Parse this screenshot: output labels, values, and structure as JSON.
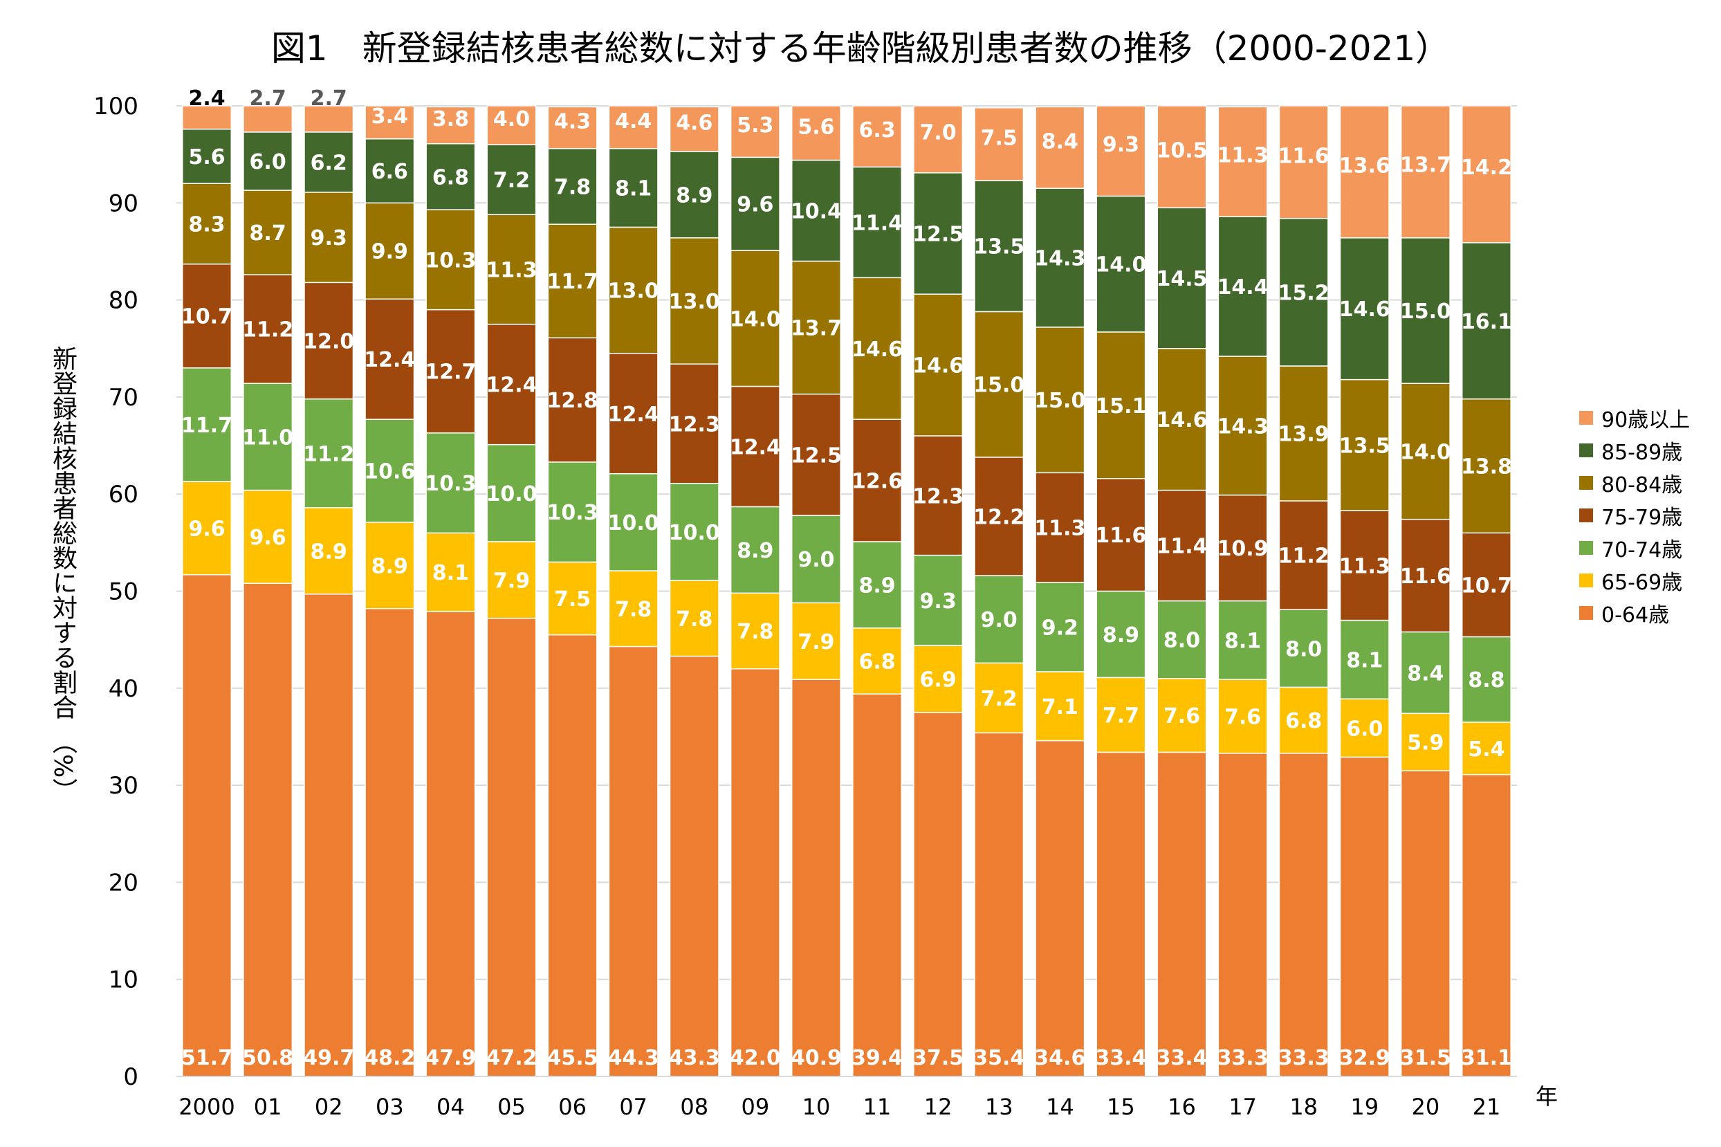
{
  "chart_data": {
    "type": "bar",
    "stacked": true,
    "title": "図1　新登録結核患者総数に対する年齢階級別患者数の推移（2000-2021）",
    "ylabel": "新登録結核患者総数に対する割合",
    "ylabel_unit": "（%）",
    "xunit": "年",
    "ylim": [
      0,
      100
    ],
    "yticks": [
      "0",
      "10",
      "20",
      "30",
      "40",
      "50",
      "60",
      "70",
      "80",
      "90",
      "100"
    ],
    "categories": [
      "2000",
      "01",
      "02",
      "03",
      "04",
      "05",
      "06",
      "07",
      "08",
      "09",
      "10",
      "11",
      "12",
      "13",
      "14",
      "15",
      "16",
      "17",
      "18",
      "19",
      "20",
      "21"
    ],
    "grid": true,
    "legend_position": "right",
    "series": [
      {
        "name": "0-64歳",
        "color": "#ED7D31",
        "values": [
          51.7,
          50.8,
          49.7,
          48.2,
          47.9,
          47.2,
          45.5,
          44.3,
          43.3,
          42.0,
          40.9,
          39.4,
          37.5,
          35.4,
          34.6,
          33.4,
          33.4,
          33.3,
          33.3,
          32.9,
          31.5,
          31.1
        ]
      },
      {
        "name": "65-69歳",
        "color": "#FFC000",
        "values": [
          9.6,
          9.6,
          8.9,
          8.9,
          8.1,
          7.9,
          7.5,
          7.8,
          7.8,
          7.8,
          7.9,
          6.8,
          6.9,
          7.2,
          7.1,
          7.7,
          7.6,
          7.6,
          6.8,
          6.0,
          5.9,
          5.4
        ]
      },
      {
        "name": "70-74歳",
        "color": "#70AD47",
        "values": [
          11.7,
          11.0,
          11.2,
          10.6,
          10.3,
          10.0,
          10.3,
          10.0,
          10.0,
          8.9,
          9.0,
          8.9,
          9.3,
          9.0,
          9.2,
          8.9,
          8.0,
          8.1,
          8.0,
          8.1,
          8.4,
          8.8
        ]
      },
      {
        "name": "75-79歳",
        "color": "#9E480E",
        "values": [
          10.7,
          11.2,
          12.0,
          12.4,
          12.7,
          12.4,
          12.8,
          12.4,
          12.3,
          12.4,
          12.5,
          12.6,
          12.3,
          12.2,
          11.3,
          11.6,
          11.4,
          10.9,
          11.2,
          11.3,
          11.6,
          10.7
        ]
      },
      {
        "name": "80-84歳",
        "color": "#997300",
        "values": [
          8.3,
          8.7,
          9.3,
          9.9,
          10.3,
          11.3,
          11.7,
          13.0,
          13.0,
          14.0,
          13.7,
          14.6,
          14.6,
          15.0,
          15.0,
          15.1,
          14.6,
          14.3,
          13.9,
          13.5,
          14.0,
          13.8
        ]
      },
      {
        "name": "85-89歳",
        "color": "#43682B",
        "values": [
          5.6,
          6.0,
          6.2,
          6.6,
          6.8,
          7.2,
          7.8,
          8.1,
          8.9,
          9.6,
          10.4,
          11.4,
          12.5,
          13.5,
          14.3,
          14.0,
          14.5,
          14.4,
          15.2,
          14.6,
          15.0,
          16.1
        ]
      },
      {
        "name": "90歳以上",
        "color": "#F4975B",
        "values": [
          2.4,
          2.7,
          2.7,
          3.4,
          3.8,
          4.0,
          4.3,
          4.4,
          4.6,
          5.3,
          5.6,
          6.3,
          7.0,
          7.5,
          8.4,
          9.3,
          10.5,
          11.3,
          11.6,
          13.6,
          13.7,
          14.2
        ]
      }
    ]
  }
}
